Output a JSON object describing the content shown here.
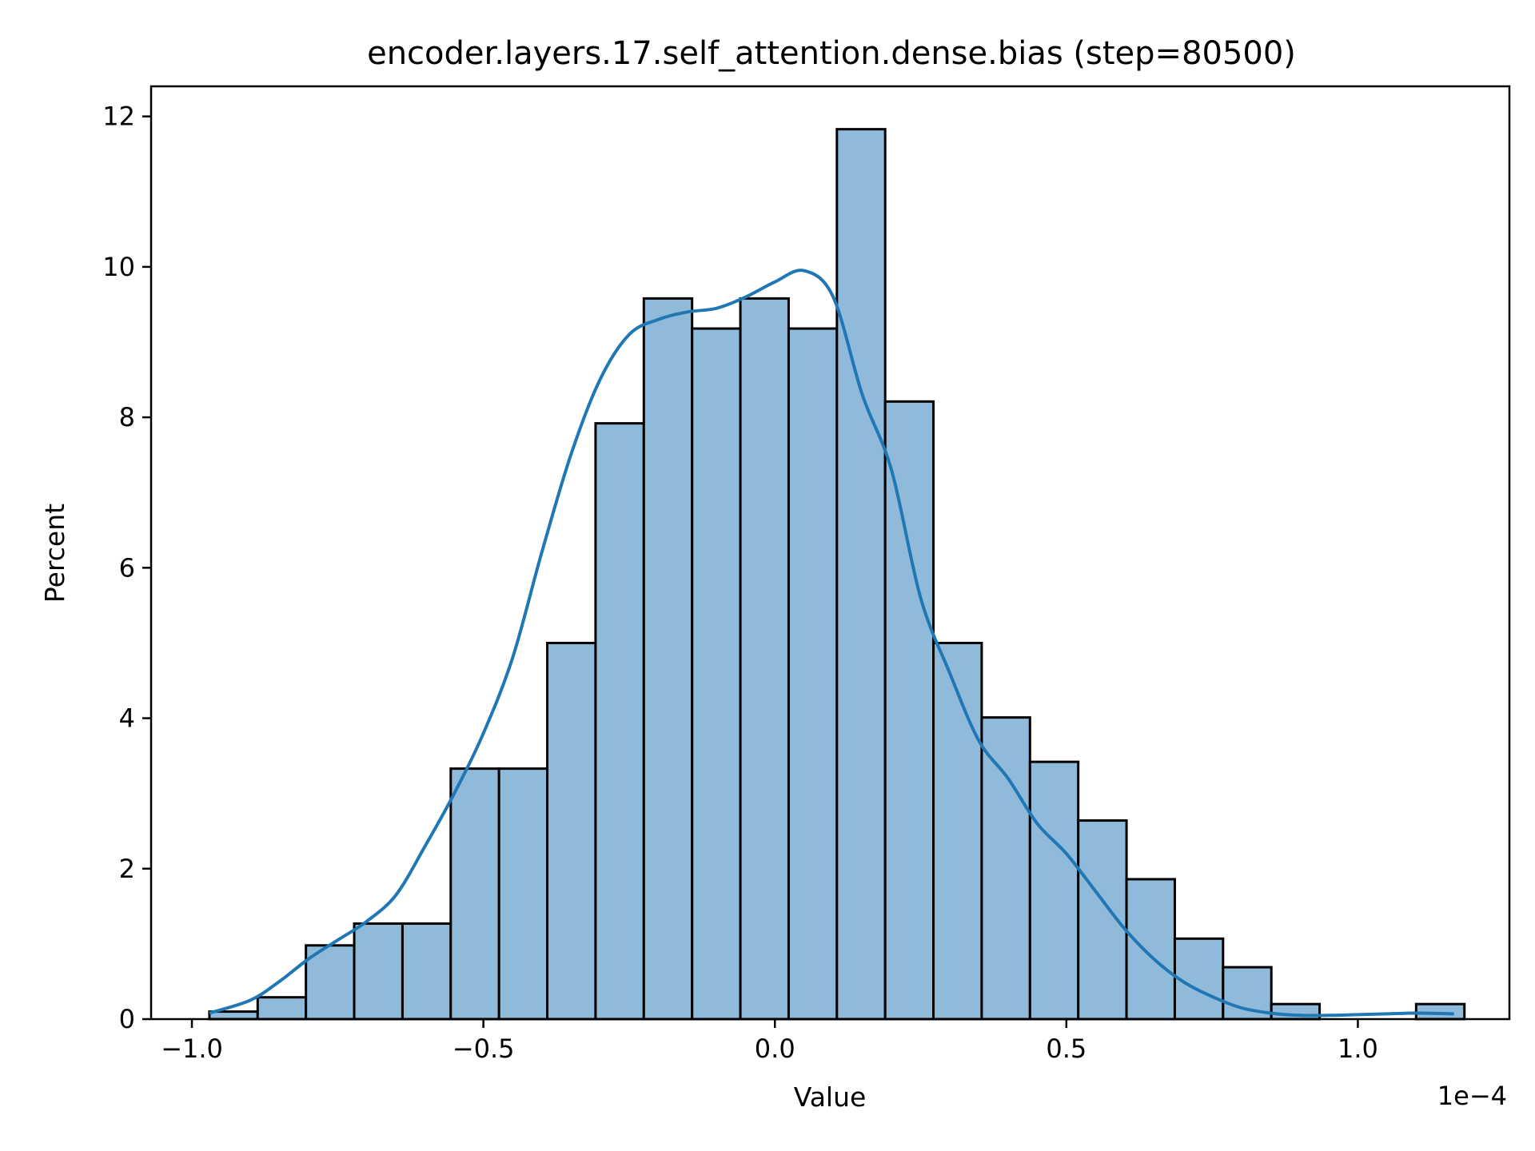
{
  "chart_data": {
    "type": "bar",
    "title": "encoder.layers.17.self_attention.dense.bias (step=80500)",
    "xlabel": "Value",
    "ylabel": "Percent",
    "x_offset_label": "1e−4",
    "xlim": [
      -1.07,
      1.26
    ],
    "ylim": [
      0,
      12.4
    ],
    "xticks": [
      -1.0,
      -0.5,
      0.0,
      0.5,
      1.0
    ],
    "xtick_labels": [
      "−1.0",
      "−0.5",
      "0.0",
      "0.5",
      "1.0"
    ],
    "yticks": [
      0,
      2,
      4,
      6,
      8,
      10,
      12
    ],
    "ytick_labels": [
      "0",
      "2",
      "4",
      "6",
      "8",
      "10",
      "12"
    ],
    "bin_start": -0.97,
    "bin_width": 0.0828,
    "values": [
      0.1,
      0.29,
      0.98,
      1.27,
      1.27,
      3.33,
      3.33,
      5.0,
      7.92,
      9.58,
      9.18,
      9.58,
      9.18,
      11.83,
      8.21,
      5.0,
      4.01,
      3.42,
      2.64,
      1.86,
      1.07,
      0.69,
      0.2,
      0.0,
      0.0,
      0.2
    ],
    "kde": {
      "x": [
        -0.97,
        -0.9,
        -0.85,
        -0.8,
        -0.75,
        -0.7,
        -0.65,
        -0.6,
        -0.55,
        -0.5,
        -0.45,
        -0.4,
        -0.35,
        -0.3,
        -0.25,
        -0.2,
        -0.15,
        -0.1,
        -0.05,
        0.0,
        0.05,
        0.1,
        0.15,
        0.2,
        0.25,
        0.3,
        0.35,
        0.4,
        0.45,
        0.5,
        0.55,
        0.6,
        0.65,
        0.7,
        0.75,
        0.8,
        0.85,
        0.9,
        0.95,
        1.0,
        1.05,
        1.1,
        1.165
      ],
      "y": [
        0.08,
        0.25,
        0.5,
        0.8,
        1.05,
        1.3,
        1.65,
        2.3,
        3.0,
        3.8,
        4.8,
        6.2,
        7.5,
        8.5,
        9.1,
        9.3,
        9.4,
        9.45,
        9.6,
        9.8,
        9.95,
        9.6,
        8.3,
        7.3,
        5.6,
        4.6,
        3.7,
        3.2,
        2.6,
        2.2,
        1.7,
        1.2,
        0.8,
        0.5,
        0.3,
        0.15,
        0.08,
        0.05,
        0.05,
        0.06,
        0.07,
        0.08,
        0.07
      ]
    },
    "grid": false,
    "legend": "none"
  }
}
